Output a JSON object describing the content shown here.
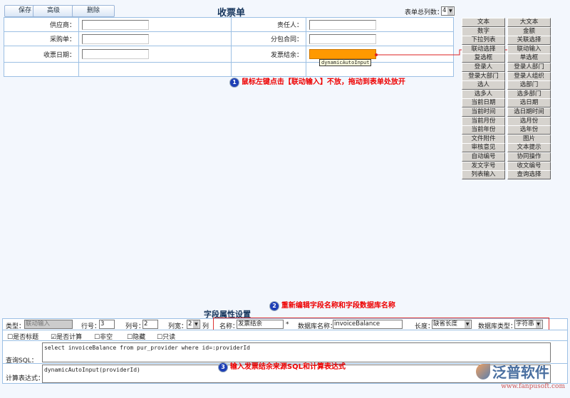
{
  "toolbar": {
    "save": "保存",
    "advanced": "高级",
    "delete": "删除"
  },
  "form_title": "收票单",
  "columns_label": "表单总列数：",
  "columns_value": "4",
  "fields": [
    {
      "label": "供应商：",
      "value": ""
    },
    {
      "label": "责任人：",
      "value": ""
    },
    {
      "label": "采购单：",
      "value": ""
    },
    {
      "label": "分包合同：",
      "value": ""
    },
    {
      "label": "收票日期：",
      "value": ""
    },
    {
      "label": "发票结余：",
      "value": ""
    }
  ],
  "tooltip": "dynamicAutoInput",
  "palette": [
    "文本",
    "大文本",
    "数字",
    "金额",
    "下拉列表",
    "关联选择",
    "联动选择",
    "联动输入",
    "复选框",
    "单选框",
    "登录人",
    "登录人部门",
    "登录大部门",
    "登录人组织",
    "选人",
    "选部门",
    "选多人",
    "选多部门",
    "当前日期",
    "选日期",
    "当前时间",
    "选日期时间",
    "当前月份",
    "选月份",
    "当前年份",
    "选年份",
    "文件附件",
    "图片",
    "审核意见",
    "文本提示",
    "自动编号",
    "协同操作",
    "发文字号",
    "收文编号",
    "列表输入",
    "查询选择"
  ],
  "annotations": {
    "n1": "1",
    "a1": "鼠标左键点击【联动输入】不放，拖动到表单处放开",
    "n2": "2",
    "a2": "重新编辑字段名称和字段数据库名称",
    "n3": "3",
    "a3": "输入发票结余来源SQL和计算表达式"
  },
  "props": {
    "title": "字段属性设置",
    "type_label": "类型：",
    "type_value": "联动输入",
    "row_label": "行号：",
    "row_value": "3",
    "col_label": "列号：",
    "col_value": "2",
    "width_label": "列宽：",
    "width_value": "2",
    "width_unit": "列",
    "name_label": "名称：",
    "name_value": "发票结余",
    "required": "*",
    "db_label": "数据库名称：",
    "db_value": "invoiceBalance",
    "len_label": "长度：",
    "len_value": "缺省长度",
    "dbtype_label": "数据库类型：",
    "dbtype_value": "字符串",
    "checks": [
      {
        "label": "是否标题",
        "checked": false
      },
      {
        "label": "是否计算",
        "checked": true
      },
      {
        "label": "非空",
        "checked": false
      },
      {
        "label": "隐藏",
        "checked": false
      },
      {
        "label": "只读",
        "checked": false
      }
    ],
    "sql_label": "查询SQL：",
    "sql_value": "select invoiceBalance from pur_provider where id=:providerId",
    "expr_label": "计算表达式：",
    "expr_value": "dynamicAutoInput(providerId)"
  },
  "logo": {
    "name": "泛普软件",
    "url": "www.fanpusoft.com"
  }
}
